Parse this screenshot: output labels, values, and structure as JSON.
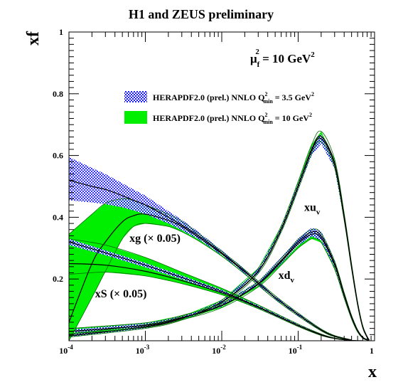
{
  "chart_data": {
    "type": "line",
    "title": "H1 and ZEUS preliminary",
    "xlabel": "x",
    "ylabel": "xf",
    "xscale": "log",
    "xlim": [
      0.0001,
      1
    ],
    "ylim": [
      0,
      1
    ],
    "x_tick_labels": [
      {
        "base": "10",
        "exp": "-4",
        "value": 0.0001
      },
      {
        "base": "10",
        "exp": "-3",
        "value": 0.001
      },
      {
        "base": "10",
        "exp": "-2",
        "value": 0.01
      },
      {
        "base": "10",
        "exp": "-1",
        "value": 0.1
      },
      {
        "base": "1",
        "exp": "",
        "value": 1
      }
    ],
    "y_tick_labels": [
      {
        "text": "0.2",
        "value": 0.2
      },
      {
        "text": "0.4",
        "value": 0.4
      },
      {
        "text": "0.6",
        "value": 0.6
      },
      {
        "text": "0.8",
        "value": 0.8
      },
      {
        "text": "1",
        "value": 1
      }
    ],
    "scale_annotation": {
      "mu": "μ",
      "sub": "f",
      "sup": "2",
      "rest": " = 10 GeV",
      "unit_sup": "2"
    },
    "legend_placement": "top-right",
    "legend": [
      {
        "prefix": "HERAPDF2.0 (prel.) NNLO Q",
        "sup": "2",
        "sub": "min",
        "suffix": " = 3.5 GeV",
        "suffix_sup": "2",
        "style": "hatched-blue",
        "color": "#1a1aff"
      },
      {
        "prefix": "HERAPDF2.0 (prel.) NNLO Q",
        "sup": "2",
        "sub": "min",
        "suffix": " = 10 GeV",
        "suffix_sup": "2",
        "style": "solid-green",
        "color": "#00ee00"
      }
    ],
    "curve_labels": [
      {
        "id": "xuv",
        "main": "xu",
        "sub": "v",
        "x": 0.12,
        "y": 0.42
      },
      {
        "id": "xdv",
        "main": "xd",
        "sub": "v",
        "x": 0.055,
        "y": 0.2
      },
      {
        "id": "xg",
        "main": "xg (× 0.05)",
        "sub": "",
        "x": 0.00062,
        "y": 0.32
      },
      {
        "id": "xS",
        "main": "xS (× 0.05)",
        "sub": "",
        "x": 0.00022,
        "y": 0.14
      }
    ],
    "series": [
      {
        "name": "xu",
        "x": [
          0.0001,
          0.001,
          0.003,
          0.01,
          0.03,
          0.06,
          0.1,
          0.15,
          0.2,
          0.3,
          0.4,
          0.5,
          0.6,
          0.7,
          0.8,
          0.85
        ],
        "q3p5": {
          "central": [
            0.016,
            0.045,
            0.072,
            0.125,
            0.225,
            0.36,
            0.5,
            0.615,
            0.655,
            0.57,
            0.4,
            0.24,
            0.12,
            0.045,
            0.012,
            0.003
          ],
          "lower": [
            0.013,
            0.04,
            0.067,
            0.12,
            0.218,
            0.352,
            0.49,
            0.6,
            0.638,
            0.558,
            0.39,
            0.232,
            0.115,
            0.042,
            0.01,
            0.002
          ],
          "upper": [
            0.02,
            0.05,
            0.077,
            0.13,
            0.232,
            0.368,
            0.51,
            0.628,
            0.67,
            0.582,
            0.41,
            0.248,
            0.125,
            0.048,
            0.014,
            0.004
          ]
        },
        "q10": {
          "central": [
            0.016,
            0.046,
            0.073,
            0.126,
            0.226,
            0.362,
            0.503,
            0.62,
            0.662,
            0.575,
            0.402,
            0.241,
            0.12,
            0.045,
            0.012,
            0.003
          ],
          "lower": [
            0.012,
            0.04,
            0.067,
            0.12,
            0.218,
            0.352,
            0.49,
            0.605,
            0.645,
            0.56,
            0.39,
            0.232,
            0.114,
            0.041,
            0.01,
            0.002
          ],
          "upper": [
            0.022,
            0.052,
            0.079,
            0.132,
            0.235,
            0.372,
            0.516,
            0.635,
            0.678,
            0.588,
            0.413,
            0.25,
            0.126,
            0.049,
            0.014,
            0.004
          ]
        }
      },
      {
        "name": "xd",
        "x": [
          0.0001,
          0.001,
          0.003,
          0.01,
          0.03,
          0.06,
          0.1,
          0.15,
          0.2,
          0.3,
          0.4,
          0.5,
          0.6,
          0.7,
          0.8,
          0.85
        ],
        "q3p5": {
          "central": [
            0.03,
            0.05,
            0.075,
            0.115,
            0.185,
            0.26,
            0.32,
            0.352,
            0.34,
            0.25,
            0.15,
            0.078,
            0.033,
            0.011,
            0.003,
            0.001
          ],
          "lower": [
            0.025,
            0.045,
            0.07,
            0.11,
            0.178,
            0.25,
            0.308,
            0.338,
            0.325,
            0.238,
            0.142,
            0.072,
            0.03,
            0.009,
            0.002,
            0.0005
          ],
          "upper": [
            0.036,
            0.056,
            0.08,
            0.12,
            0.192,
            0.27,
            0.332,
            0.366,
            0.355,
            0.262,
            0.158,
            0.084,
            0.036,
            0.013,
            0.004,
            0.0015
          ]
        },
        "q10": {
          "central": [
            0.03,
            0.05,
            0.075,
            0.114,
            0.183,
            0.256,
            0.314,
            0.345,
            0.333,
            0.245,
            0.147,
            0.076,
            0.032,
            0.01,
            0.003,
            0.001
          ],
          "lower": [
            0.022,
            0.043,
            0.068,
            0.107,
            0.174,
            0.245,
            0.3,
            0.33,
            0.318,
            0.232,
            0.138,
            0.07,
            0.028,
            0.008,
            0.002,
            0.0005
          ],
          "upper": [
            0.04,
            0.058,
            0.082,
            0.121,
            0.192,
            0.267,
            0.328,
            0.36,
            0.348,
            0.258,
            0.156,
            0.082,
            0.036,
            0.012,
            0.004,
            0.0015
          ]
        }
      },
      {
        "name": "xg (× 0.05)",
        "x": [
          0.0001,
          0.0002,
          0.0003,
          0.0005,
          0.0007,
          0.001,
          0.002,
          0.003,
          0.005,
          0.01,
          0.02,
          0.05,
          0.1,
          0.2,
          0.3,
          0.5
        ],
        "q3p5": {
          "central": [
            0.52,
            0.5,
            0.49,
            0.47,
            0.455,
            0.44,
            0.4,
            0.375,
            0.34,
            0.285,
            0.225,
            0.14,
            0.085,
            0.035,
            0.015,
            0.002
          ],
          "lower": [
            0.455,
            0.448,
            0.442,
            0.432,
            0.422,
            0.41,
            0.38,
            0.358,
            0.328,
            0.277,
            0.218,
            0.135,
            0.08,
            0.032,
            0.013,
            0.001
          ],
          "upper": [
            0.595,
            0.56,
            0.54,
            0.51,
            0.49,
            0.47,
            0.42,
            0.392,
            0.352,
            0.293,
            0.232,
            0.145,
            0.09,
            0.038,
            0.017,
            0.003
          ]
        },
        "q10": {
          "central": [
            0.06,
            0.25,
            0.32,
            0.385,
            0.405,
            0.41,
            0.39,
            0.37,
            0.335,
            0.282,
            0.223,
            0.14,
            0.085,
            0.035,
            0.015,
            0.002
          ],
          "lower": [
            0.0,
            0.14,
            0.225,
            0.33,
            0.37,
            0.38,
            0.37,
            0.353,
            0.323,
            0.274,
            0.216,
            0.134,
            0.08,
            0.032,
            0.013,
            0.001
          ],
          "upper": [
            0.345,
            0.41,
            0.445,
            0.46,
            0.455,
            0.44,
            0.41,
            0.387,
            0.347,
            0.29,
            0.23,
            0.146,
            0.09,
            0.038,
            0.017,
            0.003
          ]
        }
      },
      {
        "name": "xS (× 0.05)",
        "x": [
          0.0001,
          0.0003,
          0.001,
          0.003,
          0.01,
          0.03,
          0.1,
          0.2,
          0.3,
          0.5,
          0.7
        ],
        "q3p5": {
          "central": [
            0.32,
            0.285,
            0.245,
            0.205,
            0.16,
            0.11,
            0.05,
            0.02,
            0.008,
            0.001,
            0.0001
          ],
          "lower": [
            0.31,
            0.277,
            0.238,
            0.199,
            0.155,
            0.106,
            0.047,
            0.018,
            0.007,
            0.0008,
            0.0001
          ],
          "upper": [
            0.33,
            0.293,
            0.252,
            0.211,
            0.165,
            0.114,
            0.053,
            0.022,
            0.009,
            0.0013,
            0.0002
          ]
        },
        "q10": {
          "central": [
            0.25,
            0.245,
            0.225,
            0.195,
            0.155,
            0.108,
            0.049,
            0.019,
            0.008,
            0.001,
            0.0001
          ],
          "lower": [
            0.215,
            0.222,
            0.21,
            0.185,
            0.149,
            0.104,
            0.046,
            0.017,
            0.007,
            0.0008,
            0.0001
          ],
          "upper": [
            0.33,
            0.31,
            0.27,
            0.222,
            0.17,
            0.116,
            0.054,
            0.022,
            0.009,
            0.0013,
            0.0002
          ]
        }
      }
    ]
  }
}
